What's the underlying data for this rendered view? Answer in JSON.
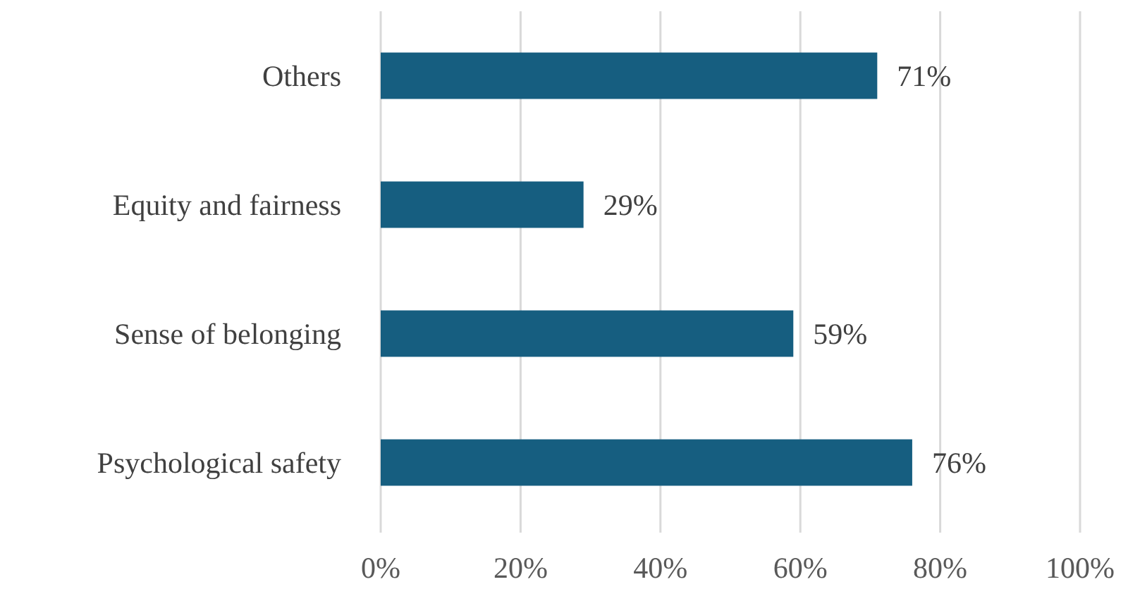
{
  "chart_data": {
    "type": "bar",
    "orientation": "horizontal",
    "categories": [
      "Others",
      "Equity and fairness",
      "Sense of belonging",
      "Psychological safety"
    ],
    "values": [
      71,
      29,
      59,
      76
    ],
    "value_labels": [
      "71%",
      "29%",
      "59%",
      "76%"
    ],
    "color": "#165e80",
    "xlim": [
      0,
      100
    ],
    "xticks": [
      {
        "value": 0,
        "label": "0%"
      },
      {
        "value": 20,
        "label": "20%"
      },
      {
        "value": 40,
        "label": "40%"
      },
      {
        "value": 60,
        "label": "60%"
      },
      {
        "value": 80,
        "label": "80%"
      },
      {
        "value": 100,
        "label": "100%"
      }
    ],
    "grid": "x"
  }
}
